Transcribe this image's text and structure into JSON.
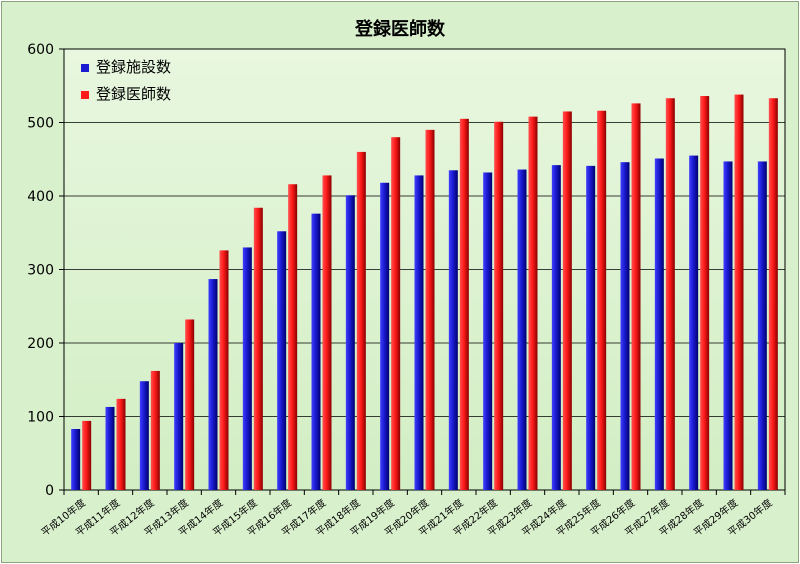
{
  "chart_data": {
    "type": "bar",
    "title": "登録医師数",
    "categories": [
      "平成10年度",
      "平成11年度",
      "平成12年度",
      "平成13年度",
      "平成14年度",
      "平成15年度",
      "平成16年度",
      "平成17年度",
      "平成18年度",
      "平成19年度",
      "平成20年度",
      "平成21年度",
      "平成22年度",
      "平成23年度",
      "平成24年度",
      "平成25年度",
      "平成26年度",
      "平成27年度",
      "平成28年度",
      "平成29年度",
      "平成30年度"
    ],
    "series": [
      {
        "name": "登録施設数",
        "color": "#1a1ad0",
        "values": [
          83,
          113,
          148,
          200,
          287,
          330,
          352,
          376,
          401,
          418,
          428,
          435,
          432,
          436,
          442,
          441,
          446,
          451,
          455,
          447,
          447
        ]
      },
      {
        "name": "登録医師数",
        "color": "#ff1a1a",
        "values": [
          94,
          124,
          162,
          232,
          326,
          384,
          416,
          428,
          460,
          480,
          490,
          505,
          501,
          508,
          515,
          516,
          526,
          533,
          536,
          538,
          533
        ]
      }
    ],
    "yticks": [
      0,
      100,
      200,
      300,
      400,
      500,
      600
    ],
    "ylim": [
      0,
      600
    ],
    "grid": true,
    "legend": "top-left"
  }
}
